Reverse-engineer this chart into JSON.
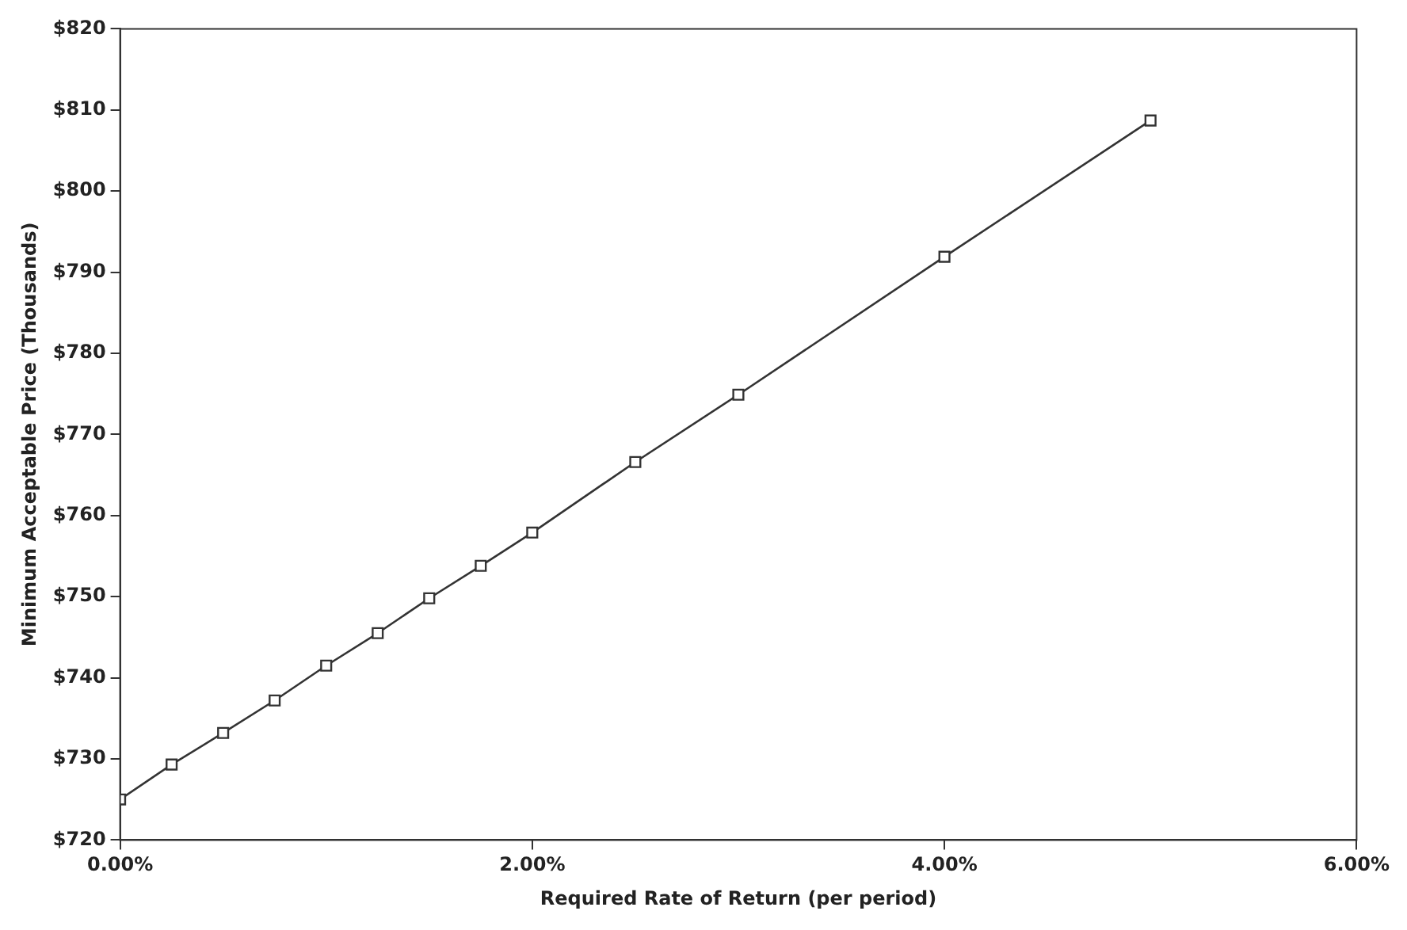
{
  "chart_data": {
    "type": "line",
    "xlabel": "Required Rate of Return (per period)",
    "ylabel": "Minimum Acceptable Price (Thousands)",
    "x": [
      0,
      0.25,
      0.5,
      0.75,
      1.0,
      1.25,
      1.5,
      1.75,
      2.0,
      2.5,
      3.0,
      4.0,
      5.0
    ],
    "series": [
      {
        "color": "#333333",
        "values": [
          725,
          729.3,
          733.2,
          737.2,
          741.5,
          745.5,
          749.8,
          753.8,
          757.9,
          766.6,
          774.9,
          791.9,
          808.7
        ]
      }
    ],
    "xlim": [
      0,
      6
    ],
    "xticks": [
      {
        "value": 0,
        "label": "0.00%"
      },
      {
        "value": 2,
        "label": "2.00%"
      },
      {
        "value": 4,
        "label": "4.00%"
      },
      {
        "value": 6,
        "label": "6.00%"
      }
    ],
    "ylim": [
      720,
      820
    ],
    "yticks": [
      {
        "value": 720,
        "label": "$720"
      },
      {
        "value": 730,
        "label": "$730"
      },
      {
        "value": 740,
        "label": "$740"
      },
      {
        "value": 750,
        "label": "$750"
      },
      {
        "value": 760,
        "label": "$760"
      },
      {
        "value": 770,
        "label": "$770"
      },
      {
        "value": 780,
        "label": "$780"
      },
      {
        "value": 790,
        "label": "$790"
      },
      {
        "value": 800,
        "label": "$800"
      },
      {
        "value": 810,
        "label": "$810"
      },
      {
        "value": 820,
        "label": "$820"
      }
    ],
    "grid": false,
    "legend": false,
    "marker": "square",
    "line_style": "solid"
  }
}
